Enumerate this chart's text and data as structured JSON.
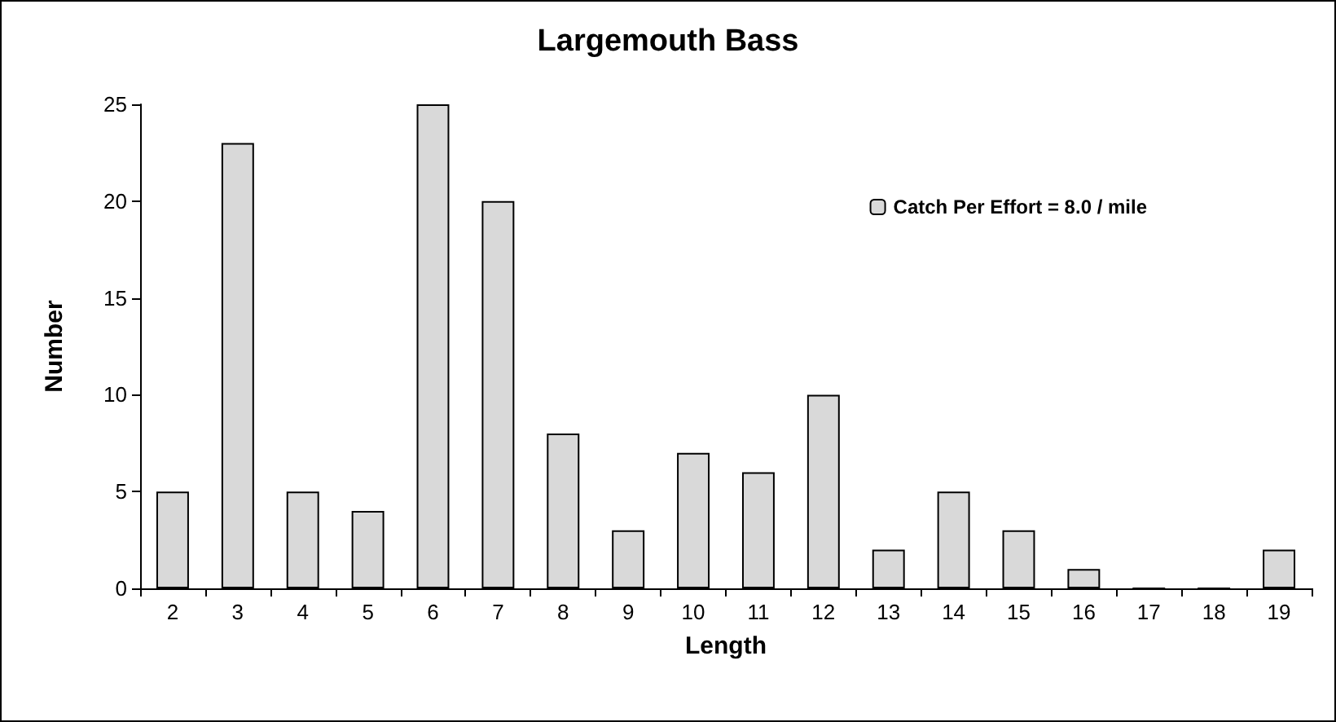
{
  "chart_data": {
    "type": "bar",
    "title": "Largemouth Bass",
    "xlabel": "Length",
    "ylabel": "Number",
    "categories": [
      "2",
      "3",
      "4",
      "5",
      "6",
      "7",
      "8",
      "9",
      "10",
      "11",
      "12",
      "13",
      "14",
      "15",
      "16",
      "17",
      "18",
      "19"
    ],
    "series": [
      {
        "name": "Catch Per Effort = 8.0 / mile",
        "color": "#d9d9d9",
        "values": [
          5,
          23,
          5,
          4,
          25,
          20,
          8,
          3,
          7,
          6,
          10,
          2,
          5,
          3,
          1,
          0,
          0,
          2
        ]
      }
    ],
    "ylim": [
      0,
      25
    ],
    "yticks": [
      0,
      5,
      10,
      15,
      20,
      25
    ],
    "grid": false,
    "legend": "top right"
  }
}
